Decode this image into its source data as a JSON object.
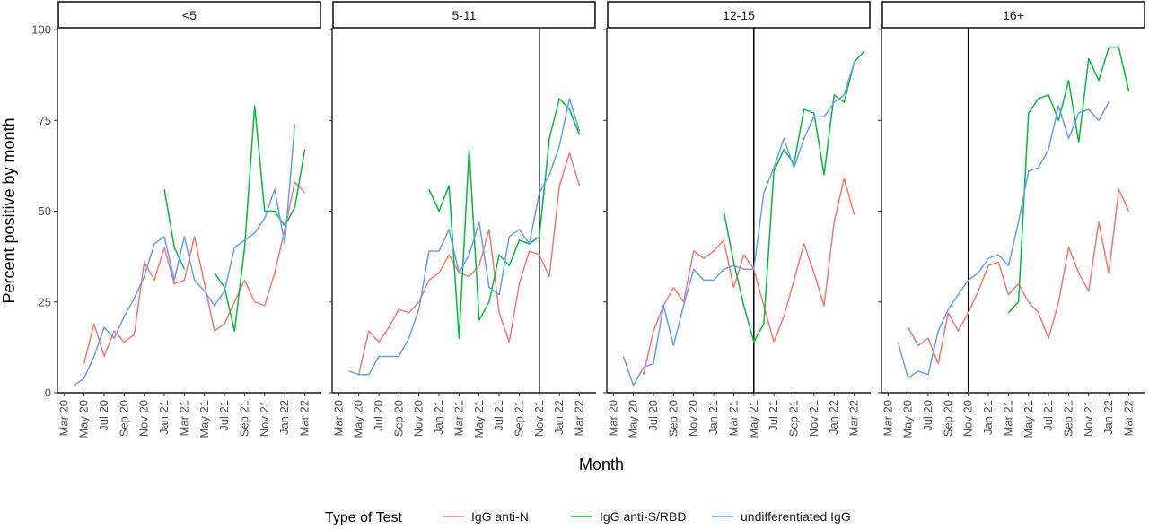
{
  "chart_data": {
    "type": "line",
    "xlabel": "Month",
    "ylabel": "Percent positive by month",
    "ylim": [
      0,
      100
    ],
    "yticks": [
      0,
      25,
      50,
      75,
      100
    ],
    "xticks": [
      "Mar 20",
      "May 20",
      "Jul 20",
      "Sep 20",
      "Nov 20",
      "Jan 21",
      "Mar 21",
      "May 21",
      "Jul 21",
      "Sep 21",
      "Nov 21",
      "Jan 22",
      "Mar 22"
    ],
    "legend": {
      "title": "Type of Test",
      "position": "bottom",
      "entries": [
        "IgG anti-N",
        "IgG anti-S/RBD",
        "undifferentiated IgG"
      ]
    },
    "colors": {
      "IgG anti-N": "#F8766D",
      "IgG anti-S/RBD": "#00BA38",
      "undifferentiated IgG": "#619CFF"
    },
    "panels": [
      {
        "label": "<5",
        "vline": null,
        "series": [
          {
            "name": "IgG anti-N",
            "points": [
              [
                2,
                8
              ],
              [
                3,
                19
              ],
              [
                4,
                10
              ],
              [
                5,
                17
              ],
              [
                6,
                14
              ],
              [
                7,
                16
              ],
              [
                8,
                36
              ],
              [
                9,
                31
              ],
              [
                10,
                40
              ],
              [
                11,
                30
              ],
              [
                12,
                31
              ],
              [
                13,
                43
              ],
              [
                14,
                30
              ],
              [
                15,
                17
              ],
              [
                16,
                19
              ],
              [
                17,
                25
              ],
              [
                18,
                31
              ],
              [
                19,
                25
              ],
              [
                20,
                24
              ],
              [
                21,
                33
              ],
              [
                22,
                45
              ],
              [
                23,
                58
              ],
              [
                24,
                55
              ]
            ]
          },
          {
            "name": "IgG anti-S/RBD",
            "points": [
              [
                10,
                56
              ],
              [
                11,
                40
              ],
              [
                12,
                34
              ]
            ]
          },
          {
            "name": "IgG anti-S/RBD",
            "points": [
              [
                15,
                33
              ],
              [
                16,
                29
              ],
              [
                17,
                17
              ],
              [
                18,
                40
              ],
              [
                19,
                79
              ],
              [
                20,
                50
              ],
              [
                21,
                50
              ],
              [
                22,
                46
              ],
              [
                23,
                51
              ],
              [
                24,
                67
              ]
            ]
          },
          {
            "name": "undifferentiated IgG",
            "points": [
              [
                1,
                2
              ],
              [
                2,
                4
              ],
              [
                3,
                10
              ],
              [
                4,
                18
              ],
              [
                5,
                15
              ],
              [
                6,
                21
              ],
              [
                7,
                26
              ],
              [
                8,
                32
              ],
              [
                9,
                41
              ],
              [
                10,
                43
              ],
              [
                11,
                31
              ],
              [
                12,
                43
              ],
              [
                13,
                31
              ],
              [
                14,
                28
              ],
              [
                15,
                24
              ],
              [
                16,
                28
              ],
              [
                17,
                40
              ],
              [
                18,
                42
              ],
              [
                19,
                44
              ],
              [
                20,
                48
              ],
              [
                21,
                56
              ],
              [
                22,
                41
              ],
              [
                23,
                74
              ]
            ]
          }
        ]
      },
      {
        "label": "5-11",
        "vline": "Nov 21",
        "series": [
          {
            "name": "IgG anti-N",
            "points": [
              [
                2,
                5
              ],
              [
                3,
                17
              ],
              [
                4,
                14
              ],
              [
                5,
                18
              ],
              [
                6,
                23
              ],
              [
                7,
                22
              ],
              [
                8,
                25
              ],
              [
                9,
                31
              ],
              [
                10,
                33
              ],
              [
                11,
                38
              ],
              [
                12,
                33
              ],
              [
                13,
                32
              ],
              [
                14,
                35
              ],
              [
                15,
                45
              ],
              [
                16,
                22
              ],
              [
                17,
                14
              ],
              [
                18,
                30
              ],
              [
                19,
                39
              ],
              [
                20,
                38
              ],
              [
                21,
                32
              ],
              [
                22,
                57
              ],
              [
                23,
                66
              ],
              [
                24,
                57
              ]
            ]
          },
          {
            "name": "IgG anti-S/RBD",
            "points": [
              [
                9,
                56
              ],
              [
                10,
                50
              ],
              [
                11,
                57
              ],
              [
                12,
                15
              ],
              [
                13,
                67
              ],
              [
                14,
                20
              ],
              [
                15,
                25
              ],
              [
                16,
                38
              ],
              [
                17,
                35
              ],
              [
                18,
                42
              ],
              [
                19,
                41
              ],
              [
                20,
                43
              ],
              [
                21,
                70
              ],
              [
                22,
                81
              ],
              [
                23,
                78
              ],
              [
                24,
                71
              ]
            ]
          },
          {
            "name": "undifferentiated IgG",
            "points": [
              [
                1,
                6
              ],
              [
                2,
                5
              ],
              [
                3,
                5
              ],
              [
                4,
                10
              ],
              [
                5,
                10
              ],
              [
                6,
                10
              ],
              [
                7,
                15
              ],
              [
                8,
                23
              ],
              [
                9,
                39
              ],
              [
                10,
                39
              ],
              [
                11,
                45
              ],
              [
                12,
                33
              ],
              [
                13,
                38
              ],
              [
                14,
                47
              ],
              [
                15,
                29
              ],
              [
                16,
                27
              ],
              [
                17,
                43
              ],
              [
                18,
                45
              ],
              [
                19,
                41
              ],
              [
                20,
                55
              ],
              [
                21,
                60
              ],
              [
                22,
                68
              ],
              [
                23,
                81
              ],
              [
                24,
                72
              ]
            ]
          }
        ]
      },
      {
        "label": "12-15",
        "vline": "May 21",
        "series": [
          {
            "name": "IgG anti-N",
            "points": [
              [
                3,
                5
              ],
              [
                4,
                17
              ],
              [
                5,
                24
              ],
              [
                6,
                29
              ],
              [
                7,
                25
              ],
              [
                8,
                39
              ],
              [
                9,
                37
              ],
              [
                10,
                39
              ],
              [
                11,
                42
              ],
              [
                12,
                29
              ],
              [
                13,
                38
              ],
              [
                14,
                34
              ],
              [
                15,
                24
              ],
              [
                16,
                14
              ],
              [
                17,
                21
              ],
              [
                18,
                31
              ],
              [
                19,
                41
              ],
              [
                20,
                33
              ],
              [
                21,
                24
              ],
              [
                22,
                47
              ],
              [
                23,
                59
              ],
              [
                24,
                49
              ]
            ]
          },
          {
            "name": "IgG anti-S/RBD",
            "points": [
              [
                11,
                50
              ],
              [
                12,
                36
              ],
              [
                13,
                24
              ],
              [
                14,
                14
              ],
              [
                15,
                19
              ],
              [
                16,
                61
              ],
              [
                17,
                67
              ],
              [
                18,
                63
              ],
              [
                19,
                78
              ],
              [
                20,
                77
              ],
              [
                21,
                60
              ],
              [
                22,
                82
              ],
              [
                23,
                80
              ],
              [
                24,
                91
              ],
              [
                25,
                94
              ]
            ]
          },
          {
            "name": "undifferentiated IgG",
            "points": [
              [
                1,
                10
              ],
              [
                2,
                2
              ],
              [
                3,
                7
              ],
              [
                4,
                8
              ],
              [
                5,
                24
              ],
              [
                6,
                13
              ],
              [
                7,
                24
              ],
              [
                8,
                34
              ],
              [
                9,
                31
              ],
              [
                10,
                31
              ],
              [
                11,
                34
              ],
              [
                12,
                35
              ],
              [
                13,
                34
              ],
              [
                14,
                34
              ],
              [
                15,
                55
              ],
              [
                16,
                62
              ],
              [
                17,
                70
              ],
              [
                18,
                62
              ],
              [
                19,
                70
              ],
              [
                20,
                76
              ],
              [
                21,
                76
              ],
              [
                22,
                80
              ],
              [
                23,
                82
              ],
              [
                24,
                91
              ]
            ]
          }
        ]
      },
      {
        "label": "16+",
        "vline": "Nov 20",
        "series": [
          {
            "name": "IgG anti-N",
            "points": [
              [
                2,
                18
              ],
              [
                3,
                13
              ],
              [
                4,
                15
              ],
              [
                5,
                8
              ],
              [
                6,
                22
              ],
              [
                7,
                17
              ],
              [
                8,
                22
              ],
              [
                9,
                28
              ],
              [
                10,
                35
              ],
              [
                11,
                36
              ],
              [
                12,
                27
              ],
              [
                13,
                30
              ],
              [
                14,
                25
              ],
              [
                15,
                22
              ],
              [
                16,
                15
              ],
              [
                17,
                25
              ],
              [
                18,
                40
              ],
              [
                19,
                33
              ],
              [
                20,
                28
              ],
              [
                21,
                47
              ],
              [
                22,
                33
              ],
              [
                23,
                56
              ],
              [
                24,
                50
              ]
            ]
          },
          {
            "name": "IgG anti-S/RBD",
            "points": [
              [
                12,
                22
              ],
              [
                13,
                25
              ],
              [
                14,
                77
              ],
              [
                15,
                81
              ],
              [
                16,
                82
              ],
              [
                17,
                75
              ],
              [
                18,
                86
              ],
              [
                19,
                69
              ],
              [
                20,
                92
              ],
              [
                21,
                86
              ],
              [
                22,
                95
              ],
              [
                23,
                95
              ],
              [
                24,
                83
              ]
            ]
          },
          {
            "name": "undifferentiated IgG",
            "points": [
              [
                1,
                14
              ],
              [
                2,
                4
              ],
              [
                3,
                6
              ],
              [
                4,
                5
              ],
              [
                5,
                17
              ],
              [
                6,
                23
              ],
              [
                7,
                27
              ],
              [
                8,
                31
              ],
              [
                9,
                33
              ],
              [
                10,
                37
              ],
              [
                11,
                38
              ],
              [
                12,
                35
              ],
              [
                13,
                47
              ],
              [
                14,
                61
              ],
              [
                15,
                62
              ],
              [
                16,
                67
              ],
              [
                17,
                79
              ],
              [
                18,
                70
              ],
              [
                19,
                77
              ],
              [
                20,
                78
              ],
              [
                21,
                75
              ],
              [
                22,
                80
              ]
            ]
          }
        ]
      }
    ]
  }
}
